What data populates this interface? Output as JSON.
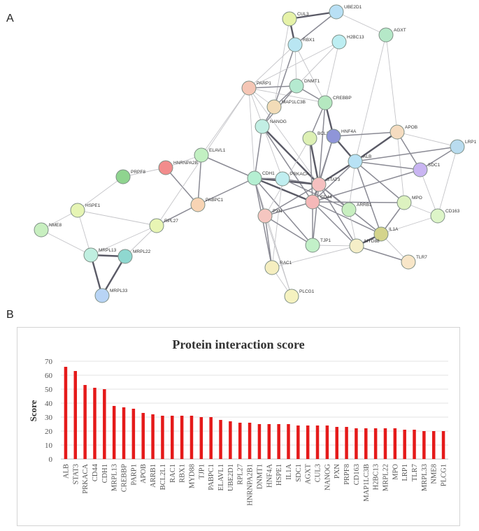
{
  "panels": {
    "a": "A",
    "b": "B"
  },
  "network": {
    "nodes": [
      {
        "id": "CUL3",
        "label": "CUL3",
        "color": "#e6f2a8"
      },
      {
        "id": "UBE2D1",
        "label": "UBE2D1",
        "color": "#b9e0f5"
      },
      {
        "id": "AGXT",
        "label": "AGXT",
        "color": "#b5e8c8"
      },
      {
        "id": "RBX1",
        "label": "RBX1",
        "color": "#b9e6f2"
      },
      {
        "id": "H2BC13",
        "label": "H2BC13",
        "color": "#bdeef2"
      },
      {
        "id": "PARP1",
        "label": "PARP1",
        "color": "#f5c6b5"
      },
      {
        "id": "DNMT1",
        "label": "DNMT1",
        "color": "#b5ead0"
      },
      {
        "id": "MAP1LC3B",
        "label": "MAP1LC3B",
        "color": "#f2dcb8"
      },
      {
        "id": "CREBBP",
        "label": "CREBBP",
        "color": "#b5e8c0"
      },
      {
        "id": "NANOG",
        "label": "NANOG",
        "color": "#c2efe4"
      },
      {
        "id": "BCL2L1",
        "label": "BCL2L1",
        "color": "#ddf0b4"
      },
      {
        "id": "HNF4A",
        "label": "HNF4A",
        "color": "#8f95d8"
      },
      {
        "id": "APOB",
        "label": "APOB",
        "color": "#f5dcc0"
      },
      {
        "id": "LRP1",
        "label": "LRP1",
        "color": "#b9dcef"
      },
      {
        "id": "ALB",
        "label": "ALB",
        "color": "#b8e2f5"
      },
      {
        "id": "SDC1",
        "label": "SDC1",
        "color": "#c9b5f2"
      },
      {
        "id": "ELAVL1",
        "label": "ELAVL1",
        "color": "#c2f0c2"
      },
      {
        "id": "HNRNPA2B1",
        "label": "HNRNPA2B",
        "color": "#f28c8c"
      },
      {
        "id": "PRPF8",
        "label": "PRPF8",
        "color": "#8fd48f"
      },
      {
        "id": "CDH1",
        "label": "CDH1",
        "color": "#b5efd2"
      },
      {
        "id": "PRKACA",
        "label": "PRKACA",
        "color": "#c0eef0"
      },
      {
        "id": "STAT3",
        "label": "STAT3",
        "color": "#f5c0c0"
      },
      {
        "id": "CD44",
        "label": "CD44",
        "color": "#f5b8b8"
      },
      {
        "id": "PABPC1",
        "label": "PABPC1",
        "color": "#f8d4b4"
      },
      {
        "id": "HSPE1",
        "label": "HSPE1",
        "color": "#e6f5b4"
      },
      {
        "id": "RPL27",
        "label": "RPL27",
        "color": "#e8f5b4"
      },
      {
        "id": "PXN",
        "label": "PXN",
        "color": "#f5c6c0"
      },
      {
        "id": "ARRB1",
        "label": "ARRB1",
        "color": "#c8efc0"
      },
      {
        "id": "MPO",
        "label": "MPO",
        "color": "#ddf2c0"
      },
      {
        "id": "CD163",
        "label": "CD163",
        "color": "#ddf5c8"
      },
      {
        "id": "IL1A",
        "label": "IL1A",
        "color": "#d4d48c"
      },
      {
        "id": "MYD88",
        "label": "MYD88",
        "color": "#f5eec8"
      },
      {
        "id": "TJP1",
        "label": "TJP1",
        "color": "#c2f0c8"
      },
      {
        "id": "TLR7",
        "label": "TLR7",
        "color": "#f8e6c8"
      },
      {
        "id": "RAC1",
        "label": "RAC1",
        "color": "#f5eec0"
      },
      {
        "id": "PLCG1",
        "label": "PLCG1",
        "color": "#f5f2c0"
      },
      {
        "id": "NME8",
        "label": "NME8",
        "color": "#c8efc0"
      },
      {
        "id": "MRPL13",
        "label": "MRPL13",
        "color": "#c0efe0"
      },
      {
        "id": "MRPL22",
        "label": "MRPL22",
        "color": "#8fd8d0"
      },
      {
        "id": "MRPL33",
        "label": "MRPL33",
        "color": "#b8d4f5"
      }
    ],
    "edges": [
      [
        "CUL3",
        "UBE2D1",
        3
      ],
      [
        "CUL3",
        "RBX1",
        3
      ],
      [
        "UBE2D1",
        "RBX1",
        2
      ],
      [
        "UBE2D1",
        "AGXT",
        1
      ],
      [
        "RBX1",
        "PARP1",
        1
      ],
      [
        "RBX1",
        "MAP1LC3B",
        2
      ],
      [
        "RBX1",
        "DNMT1",
        1
      ],
      [
        "RBX1",
        "CREBBP",
        1
      ],
      [
        "CUL3",
        "MAP1LC3B",
        1
      ],
      [
        "H2BC13",
        "DNMT1",
        1
      ],
      [
        "H2BC13",
        "PARP1",
        1
      ],
      [
        "H2BC13",
        "CREBBP",
        1
      ],
      [
        "AGXT",
        "APOB",
        1
      ],
      [
        "AGXT",
        "ALB",
        1
      ],
      [
        "PARP1",
        "DNMT1",
        2
      ],
      [
        "PARP1",
        "MAP1LC3B",
        1
      ],
      [
        "PARP1",
        "CREBBP",
        1
      ],
      [
        "PARP1",
        "STAT3",
        1
      ],
      [
        "PARP1",
        "CDH1",
        1
      ],
      [
        "PARP1",
        "PRKACA",
        1
      ],
      [
        "PARP1",
        "ELAVL1",
        1
      ],
      [
        "DNMT1",
        "MAP1LC3B",
        2
      ],
      [
        "DNMT1",
        "CREBBP",
        2
      ],
      [
        "DNMT1",
        "NANOG",
        2
      ],
      [
        "MAP1LC3B",
        "NANOG",
        2
      ],
      [
        "CREBBP",
        "HNF4A",
        3
      ],
      [
        "CREBBP",
        "STAT3",
        2
      ],
      [
        "CREBBP",
        "BCL2L1",
        2
      ],
      [
        "NANOG",
        "STAT3",
        3
      ],
      [
        "NANOG",
        "CD44",
        2
      ],
      [
        "NANOG",
        "CDH1",
        2
      ],
      [
        "BCL2L1",
        "STAT3",
        3
      ],
      [
        "BCL2L1",
        "CD44",
        2
      ],
      [
        "HNF4A",
        "ALB",
        3
      ],
      [
        "HNF4A",
        "APOB",
        2
      ],
      [
        "HNF4A",
        "STAT3",
        2
      ],
      [
        "APOB",
        "ALB",
        3
      ],
      [
        "APOB",
        "LRP1",
        1
      ],
      [
        "APOB",
        "SDC1",
        2
      ],
      [
        "APOB",
        "MPO",
        1
      ],
      [
        "ALB",
        "STAT3",
        3
      ],
      [
        "ALB",
        "CD44",
        2
      ],
      [
        "ALB",
        "SDC1",
        2
      ],
      [
        "ALB",
        "LRP1",
        2
      ],
      [
        "ALB",
        "MPO",
        2
      ],
      [
        "ALB",
        "ARRB1",
        1
      ],
      [
        "ALB",
        "IL1A",
        2
      ],
      [
        "LRP1",
        "SDC1",
        2
      ],
      [
        "LRP1",
        "CD163",
        1
      ],
      [
        "SDC1",
        "CD44",
        2
      ],
      [
        "SDC1",
        "CD163",
        1
      ],
      [
        "STAT3",
        "CD44",
        3
      ],
      [
        "STAT3",
        "PRKACA",
        2
      ],
      [
        "STAT3",
        "CDH1",
        3
      ],
      [
        "STAT3",
        "IL1A",
        2
      ],
      [
        "STAT3",
        "MYD88",
        2
      ],
      [
        "STAT3",
        "PXN",
        2
      ],
      [
        "STAT3",
        "TJP1",
        2
      ],
      [
        "STAT3",
        "ARRB1",
        2
      ],
      [
        "CD44",
        "CDH1",
        3
      ],
      [
        "CD44",
        "PXN",
        2
      ],
      [
        "CD44",
        "MPO",
        2
      ],
      [
        "CD44",
        "IL1A",
        2
      ],
      [
        "CD44",
        "MYD88",
        2
      ],
      [
        "CD44",
        "TJP1",
        2
      ],
      [
        "CDH1",
        "PRKACA",
        2
      ],
      [
        "CDH1",
        "PXN",
        2
      ],
      [
        "CDH1",
        "TJP1",
        2
      ],
      [
        "CDH1",
        "RAC1",
        2
      ],
      [
        "CDH1",
        "ELAVL1",
        2
      ],
      [
        "CDH1",
        "PABPC1",
        2
      ],
      [
        "CDH1",
        "PLCG1",
        1
      ],
      [
        "PRKACA",
        "ARRB1",
        2
      ],
      [
        "PRKACA",
        "RAC1",
        1
      ],
      [
        "PXN",
        "RAC1",
        2
      ],
      [
        "PXN",
        "TJP1",
        2
      ],
      [
        "PXN",
        "PLCG1",
        1
      ],
      [
        "RAC1",
        "PLCG1",
        1
      ],
      [
        "RAC1",
        "MYD88",
        1
      ],
      [
        "TJP1",
        "MYD88",
        1
      ],
      [
        "MYD88",
        "IL1A",
        3
      ],
      [
        "MYD88",
        "TLR7",
        2
      ],
      [
        "IL1A",
        "TLR7",
        1
      ],
      [
        "IL1A",
        "MPO",
        2
      ],
      [
        "IL1A",
        "CD163",
        1
      ],
      [
        "MPO",
        "CD163",
        1
      ],
      [
        "ARRB1",
        "MYD88",
        1
      ],
      [
        "ELAVL1",
        "HNRNPA2B1",
        1
      ],
      [
        "ELAVL1",
        "PABPC1",
        2
      ],
      [
        "HNRNPA2B1",
        "PABPC1",
        2
      ],
      [
        "HNRNPA2B1",
        "PRPF8",
        1
      ],
      [
        "PABPC1",
        "RPL27",
        2
      ],
      [
        "RPL27",
        "HSPE1",
        1
      ],
      [
        "RPL27",
        "MRPL13",
        1
      ],
      [
        "RPL27",
        "MRPL22",
        1
      ],
      [
        "HSPE1",
        "NME8",
        1
      ],
      [
        "HSPE1",
        "MRPL13",
        1
      ],
      [
        "NME8",
        "MRPL13",
        1
      ],
      [
        "MRPL13",
        "MRPL22",
        3
      ],
      [
        "MRPL13",
        "MRPL33",
        3
      ],
      [
        "MRPL22",
        "MRPL33",
        3
      ],
      [
        "PRPF8",
        "HSPE1",
        1
      ],
      [
        "PARP1",
        "RPL27",
        1
      ],
      [
        "BCL2L1",
        "PXN",
        1
      ],
      [
        "HNF4A",
        "CD44",
        2
      ]
    ]
  },
  "chart_data": {
    "type": "bar",
    "title": "Protein interaction score",
    "xlabel": "",
    "ylabel": "Score",
    "ylim": [
      0,
      70
    ],
    "yticks": [
      0,
      10,
      20,
      30,
      40,
      50,
      60,
      70
    ],
    "bar_color": "#e51a1a",
    "categories": [
      "ALB",
      "STAT3",
      "PRKACA",
      "CD44",
      "CDH1",
      "MRPL13",
      "CREBBP",
      "PARP1",
      "APOB",
      "ARRB1",
      "BCL2L1",
      "RAC1",
      "RBX1",
      "MYD88",
      "TJP1",
      "PABPC1",
      "ELAVL1",
      "UBE2D1",
      "RPL27",
      "HNRNPA2B1",
      "DNMT1",
      "HNF4A",
      "HSPE1",
      "IL1A",
      "SDC1",
      "AGXT",
      "CUL3",
      "NANOG",
      "PXN",
      "PRPF8",
      "CD163",
      "MAP1LC3B",
      "H2BC13",
      "MRPL22",
      "MPO",
      "LRP1",
      "TLR7",
      "MRPL33",
      "NME8",
      "PLCG1"
    ],
    "values": [
      66,
      63,
      53,
      51,
      50,
      38,
      37,
      36,
      33,
      32,
      31,
      31,
      31,
      31,
      30,
      30,
      28,
      27,
      26,
      26,
      25,
      25,
      25,
      25,
      24,
      24,
      24,
      24,
      23,
      23,
      22,
      22,
      22,
      22,
      22,
      21,
      21,
      20,
      20,
      20
    ]
  }
}
